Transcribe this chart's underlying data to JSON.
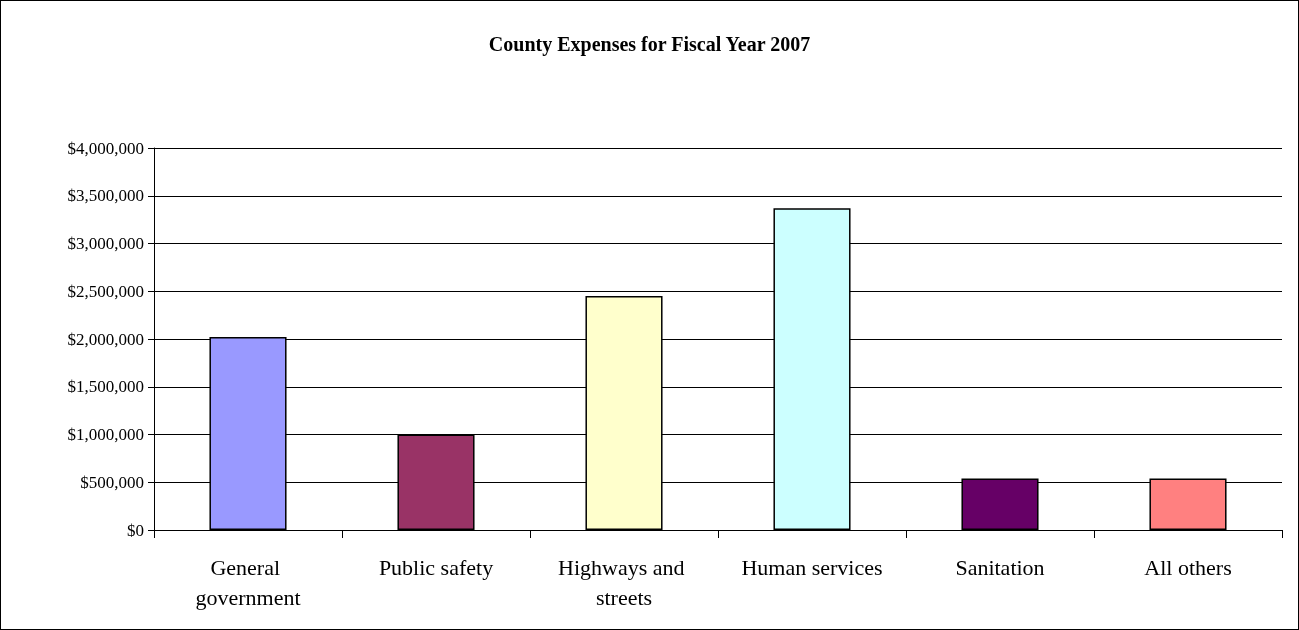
{
  "chart_data": {
    "type": "bar",
    "title": "County Expenses for Fiscal Year 2007",
    "categories": [
      "General government",
      "Public safety",
      "Highways and streets",
      "Human services",
      "Sanitation",
      "All others"
    ],
    "values": [
      2020000,
      1000000,
      2450000,
      3370000,
      540000,
      540000
    ],
    "colors": [
      "#9999ff",
      "#993366",
      "#ffffcc",
      "#ccffff",
      "#660066",
      "#ff8080"
    ],
    "ylim": [
      0,
      4000000
    ],
    "yticks": [
      {
        "value": 0,
        "label": "$0"
      },
      {
        "value": 500000,
        "label": "$500,000"
      },
      {
        "value": 1000000,
        "label": "$1,000,000"
      },
      {
        "value": 1500000,
        "label": "$1,500,000"
      },
      {
        "value": 2000000,
        "label": "$2,000,000"
      },
      {
        "value": 2500000,
        "label": "$2,500,000"
      },
      {
        "value": 3000000,
        "label": "$3,000,000"
      },
      {
        "value": 3500000,
        "label": "$3,500,000"
      },
      {
        "value": 4000000,
        "label": "$4,000,000"
      }
    ],
    "grid": "y"
  }
}
